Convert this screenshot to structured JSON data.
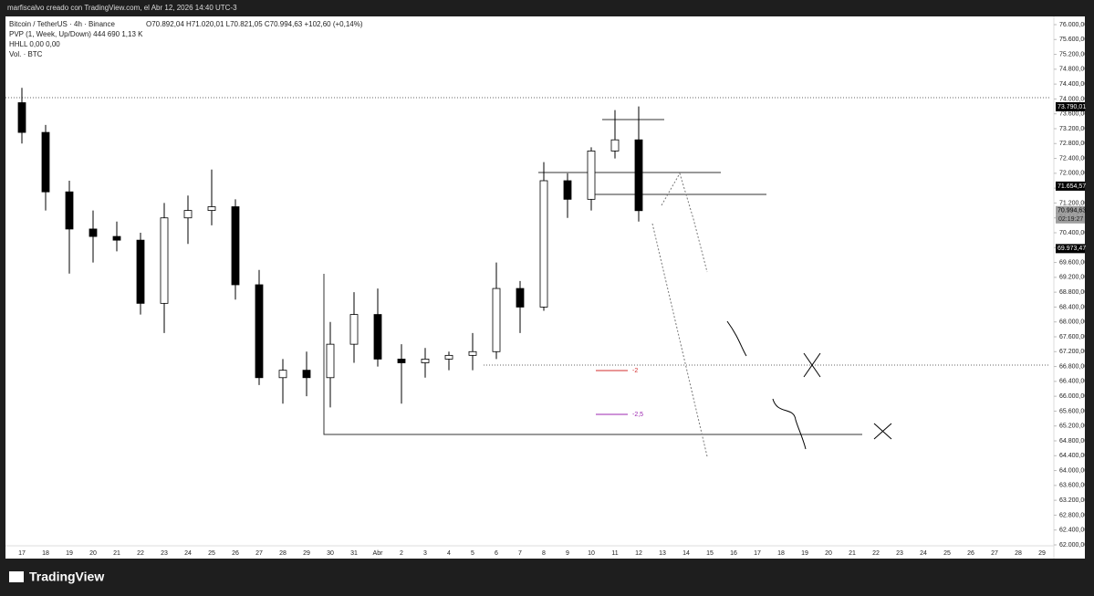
{
  "header": "marfiscalvo creado con TradingView.com, el Abr 12, 2026 14:40 UTC-3",
  "brand": "TradingView",
  "chart_data": {
    "type": "candlestick",
    "title": "Bitcoin / TetherUS · 4h · Binance",
    "ohlc_text": "O70.892,04 H71.020,01 L70.821,05 C70.994,63 +102,60 (+0,14%)",
    "indicators": [
      "PVP (1, Week, Up/Down)  444  690  1,13 K",
      "HHLL  0,00  0,00",
      "Vol. · BTC"
    ],
    "annotations": [
      {
        "text": "-2",
        "color": "#d32f2f"
      },
      {
        "text": "-2,5",
        "color": "#9c27b0"
      }
    ],
    "up_color": "#ffffff",
    "down_color": "#000000",
    "wick_color": "#000000",
    "categories": [
      "17",
      "18",
      "19",
      "20",
      "21",
      "22",
      "23",
      "24",
      "25",
      "26",
      "27",
      "28",
      "29",
      "30",
      "31",
      "Abr",
      "2",
      "3",
      "4",
      "5",
      "6",
      "7",
      "8",
      "9",
      "10",
      "11",
      "12",
      "13",
      "14",
      "15",
      "16",
      "17",
      "18",
      "19",
      "20",
      "21",
      "22",
      "23",
      "24",
      "25",
      "26",
      "27",
      "28",
      "29"
    ],
    "open": [
      73900,
      73100,
      71500,
      70500,
      70300,
      70200,
      68500,
      70800,
      71000,
      71100,
      69000,
      66500,
      66700,
      66500,
      67400,
      68200,
      67000,
      66900,
      67000,
      67100,
      67200,
      68900,
      68400,
      71800,
      71300,
      72600,
      72900,
      null,
      null,
      null,
      null,
      null,
      null,
      null,
      null,
      null,
      null,
      null,
      null,
      null,
      null,
      null,
      null,
      null
    ],
    "high": [
      74300,
      73300,
      71800,
      71000,
      70700,
      70400,
      71200,
      71400,
      72100,
      71300,
      69400,
      67000,
      67200,
      68000,
      68800,
      68900,
      67400,
      67300,
      67200,
      67700,
      69600,
      69100,
      72300,
      72000,
      72700,
      73700,
      73800,
      null,
      null,
      null,
      null,
      null,
      null,
      null,
      null,
      null,
      null,
      null,
      null,
      null,
      null,
      null,
      null,
      null
    ],
    "low": [
      72800,
      71000,
      69300,
      69600,
      69900,
      68200,
      67700,
      70100,
      70600,
      68600,
      66300,
      65800,
      66000,
      65700,
      66900,
      66800,
      65800,
      66500,
      66700,
      66700,
      67000,
      67700,
      68300,
      70800,
      71000,
      72400,
      70700,
      null,
      null,
      null,
      null,
      null,
      null,
      null,
      null,
      null,
      null,
      null,
      null,
      null,
      null,
      null,
      null,
      null
    ],
    "close": [
      73100,
      71500,
      70500,
      70300,
      70200,
      68500,
      70800,
      71000,
      71100,
      69000,
      66500,
      66700,
      66500,
      67400,
      68200,
      67000,
      66900,
      67000,
      67100,
      67200,
      68900,
      68400,
      71800,
      71300,
      72600,
      72900,
      70994.63,
      null,
      null,
      null,
      null,
      null,
      null,
      null,
      null,
      null,
      null,
      null,
      null,
      null,
      null,
      null,
      null,
      null
    ],
    "ylim": [
      62000,
      76000
    ],
    "yticks": [
      {
        "value": 76000,
        "label": "76.000,00"
      },
      {
        "value": 75600,
        "label": "75.600,00"
      },
      {
        "value": 75200,
        "label": "75.200,00"
      },
      {
        "value": 74800,
        "label": "74.800,00"
      },
      {
        "value": 74400,
        "label": "74.400,00"
      },
      {
        "value": 74000,
        "label": "74.000,00"
      },
      {
        "value": 73600,
        "label": "73.600,00"
      },
      {
        "value": 73200,
        "label": "73.200,00"
      },
      {
        "value": 72800,
        "label": "72.800,00"
      },
      {
        "value": 72400,
        "label": "72.400,00"
      },
      {
        "value": 72000,
        "label": "72.000,00"
      },
      {
        "value": 71600,
        "label": "71.600,00"
      },
      {
        "value": 71200,
        "label": "71.200,00"
      },
      {
        "value": 70800,
        "label": "70.800,00"
      },
      {
        "value": 70400,
        "label": "70.400,00"
      },
      {
        "value": 70000,
        "label": "70.000,00"
      },
      {
        "value": 69600,
        "label": "69.600,00"
      },
      {
        "value": 69200,
        "label": "69.200,00"
      },
      {
        "value": 68800,
        "label": "68.800,00"
      },
      {
        "value": 68400,
        "label": "68.400,00"
      },
      {
        "value": 68000,
        "label": "68.000,00"
      },
      {
        "value": 67600,
        "label": "67.600,00"
      },
      {
        "value": 67200,
        "label": "67.200,00"
      },
      {
        "value": 66800,
        "label": "66.800,00"
      },
      {
        "value": 66400,
        "label": "66.400,00"
      },
      {
        "value": 66000,
        "label": "66.000,00"
      },
      {
        "value": 65600,
        "label": "65.600,00"
      },
      {
        "value": 65200,
        "label": "65.200,00"
      },
      {
        "value": 64800,
        "label": "64.800,00"
      },
      {
        "value": 64400,
        "label": "64.400,00"
      },
      {
        "value": 64000,
        "label": "64.000,00"
      },
      {
        "value": 63600,
        "label": "63.600,00"
      },
      {
        "value": 63200,
        "label": "63.200,00"
      },
      {
        "value": 62800,
        "label": "62.800,00"
      },
      {
        "value": 62400,
        "label": "62.400,00"
      },
      {
        "value": 62000,
        "label": "62.000,00"
      }
    ],
    "price_labels": [
      {
        "value": 73790.01,
        "label": "73.790,01",
        "bg": "#000000",
        "fg": "#ffffff"
      },
      {
        "value": 71654.57,
        "label": "71.654,57",
        "bg": "#000000",
        "fg": "#ffffff"
      },
      {
        "value": 70994.63,
        "label": "70.994,63",
        "bg": "#9e9e9e",
        "fg": "#000000"
      },
      {
        "value": 69973.47,
        "label": "69.973,47",
        "bg": "#000000",
        "fg": "#ffffff"
      }
    ],
    "countdown": "02:19:27"
  }
}
